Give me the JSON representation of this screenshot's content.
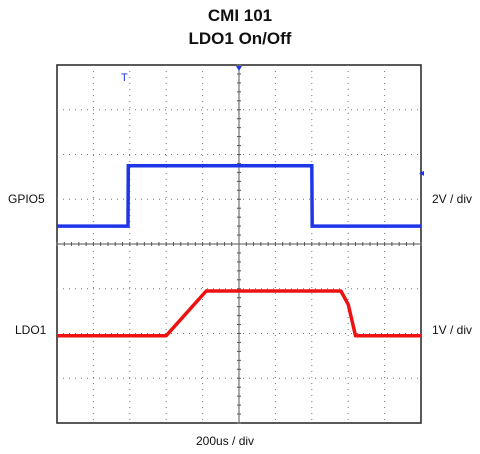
{
  "title": "CMI 101",
  "subtitle": "LDO1 On/Off",
  "channel_labels": {
    "gpio": "GPIO5",
    "ldo": "LDO1"
  },
  "scale_labels": {
    "gpio": "2V / div",
    "ldo": "1V / div",
    "time": "200us / div"
  },
  "colors": {
    "gpio": "#1f35e8",
    "ldo": "#ee1111",
    "grid": "#777777",
    "frame": "#222222"
  },
  "chart_data": {
    "type": "line",
    "title": "CMI 101",
    "subtitle": "LDO1 On/Off",
    "time_scale": "200us / div",
    "grid": {
      "h_divisions": 10,
      "v_divisions": 8,
      "on": true
    },
    "xlim": [
      0,
      2000
    ],
    "series": [
      {
        "name": "GPIO5",
        "scale": "2V / div",
        "color": "#1f35e8",
        "x": [
          0,
          390,
          392,
          1400,
          1402,
          2000
        ],
        "y": [
          0,
          0,
          2.7,
          2.7,
          0,
          0
        ]
      },
      {
        "name": "LDO1",
        "scale": "1V / div",
        "color": "#ee1111",
        "x": [
          0,
          600,
          820,
          1560,
          1600,
          1640,
          2000
        ],
        "y": [
          0,
          0,
          1.0,
          1.0,
          0.7,
          0,
          0
        ]
      }
    ]
  }
}
